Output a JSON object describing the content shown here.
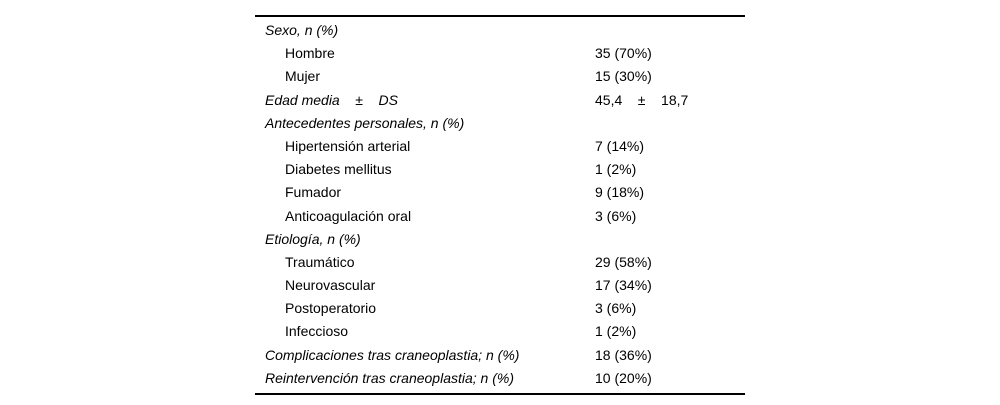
{
  "page": {
    "background": "#ffffff",
    "text_color": "#000000",
    "rule_color": "#000000"
  },
  "table": {
    "rows": [
      {
        "label": "Sexo, n (%)",
        "value": "",
        "style": "section"
      },
      {
        "label": "Hombre",
        "value": "35 (70%)",
        "style": "sub"
      },
      {
        "label": "Mujer",
        "value": "15 (30%)",
        "style": "sub"
      },
      {
        "label": "Edad media    ±    DS",
        "value": "45,4    ±    18,7",
        "style": "section"
      },
      {
        "label": "Antecedentes personales, n (%)",
        "value": "",
        "style": "section"
      },
      {
        "label": "Hipertensión arterial",
        "value": "7 (14%)",
        "style": "sub"
      },
      {
        "label": "Diabetes mellitus",
        "value": "1 (2%)",
        "style": "sub"
      },
      {
        "label": "Fumador",
        "value": "9 (18%)",
        "style": "sub"
      },
      {
        "label": "Anticoagulación oral",
        "value": "3 (6%)",
        "style": "sub"
      },
      {
        "label": "Etiología, n (%)",
        "value": "",
        "style": "section"
      },
      {
        "label": "Traumático",
        "value": "29 (58%)",
        "style": "sub"
      },
      {
        "label": "Neurovascular",
        "value": "17 (34%)",
        "style": "sub"
      },
      {
        "label": "Postoperatorio",
        "value": "3 (6%)",
        "style": "sub"
      },
      {
        "label": "Infeccioso",
        "value": "1 (2%)",
        "style": "sub"
      },
      {
        "label": "Complicaciones tras craneoplastia; n (%)",
        "value": "18 (36%)",
        "style": "section"
      },
      {
        "label": "Reintervención tras craneoplastia; n (%)",
        "value": "10 (20%)",
        "style": "section"
      }
    ]
  }
}
